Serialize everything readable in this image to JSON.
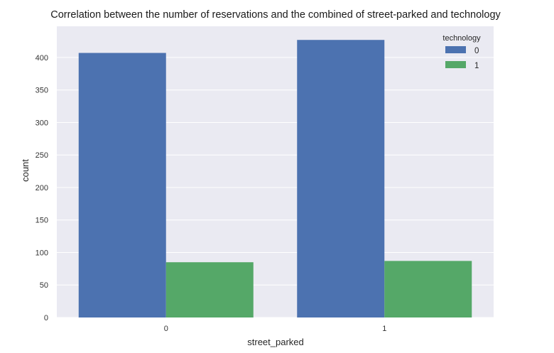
{
  "chart_data": {
    "type": "bar",
    "title": "Correlation between the number of reservations and the combined of street-parked and technology",
    "xlabel": "street_parked",
    "ylabel": "count",
    "categories": [
      "0",
      "1"
    ],
    "series": [
      {
        "name": "0",
        "values": [
          407,
          427
        ]
      },
      {
        "name": "1",
        "values": [
          85,
          87
        ]
      }
    ],
    "yticks": [
      0,
      50,
      100,
      150,
      200,
      250,
      300,
      350,
      400
    ],
    "ytick_labels": [
      "0",
      "50",
      "100",
      "150",
      "200",
      "250",
      "300",
      "350",
      "400"
    ],
    "ylim": [
      0,
      448
    ],
    "grid": true,
    "legend": {
      "title": "technology",
      "placement": "top-right"
    },
    "colors": {
      "background": "#EAEAF2",
      "grid": "#FFFFFF",
      "series": [
        "#4C72B0",
        "#55A868"
      ]
    }
  }
}
